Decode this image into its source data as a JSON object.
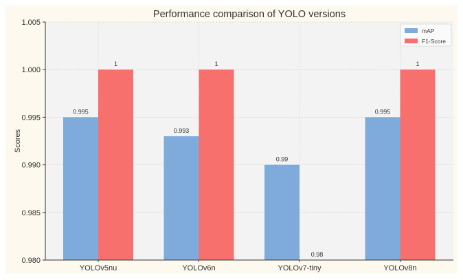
{
  "chart_data": {
    "type": "bar",
    "title": "Performance comparison of YOLO versions",
    "xlabel": "",
    "ylabel": "Scores",
    "ylim": [
      0.98,
      1.005
    ],
    "yticks": [
      "0.980",
      "0.985",
      "0.990",
      "0.995",
      "1.000",
      "1.005"
    ],
    "ytick_values": [
      0.98,
      0.985,
      0.99,
      0.995,
      1.0,
      1.005
    ],
    "categories": [
      "YOLOv5nu",
      "YOLOv6n",
      "YOLOv7-tiny",
      "YOLOv8n"
    ],
    "series": [
      {
        "name": "mAP",
        "values": [
          0.995,
          0.993,
          0.99,
          0.995
        ],
        "labels": [
          "0.995",
          "0.993",
          "0.99",
          "0.995"
        ],
        "color": "#7faadc"
      },
      {
        "name": "F1-Score",
        "values": [
          1,
          1,
          0.98,
          1
        ],
        "labels": [
          "1",
          "1",
          "0.98",
          "1"
        ],
        "color": "#f7706d"
      }
    ],
    "grid": true,
    "legend_position": "top-right"
  }
}
